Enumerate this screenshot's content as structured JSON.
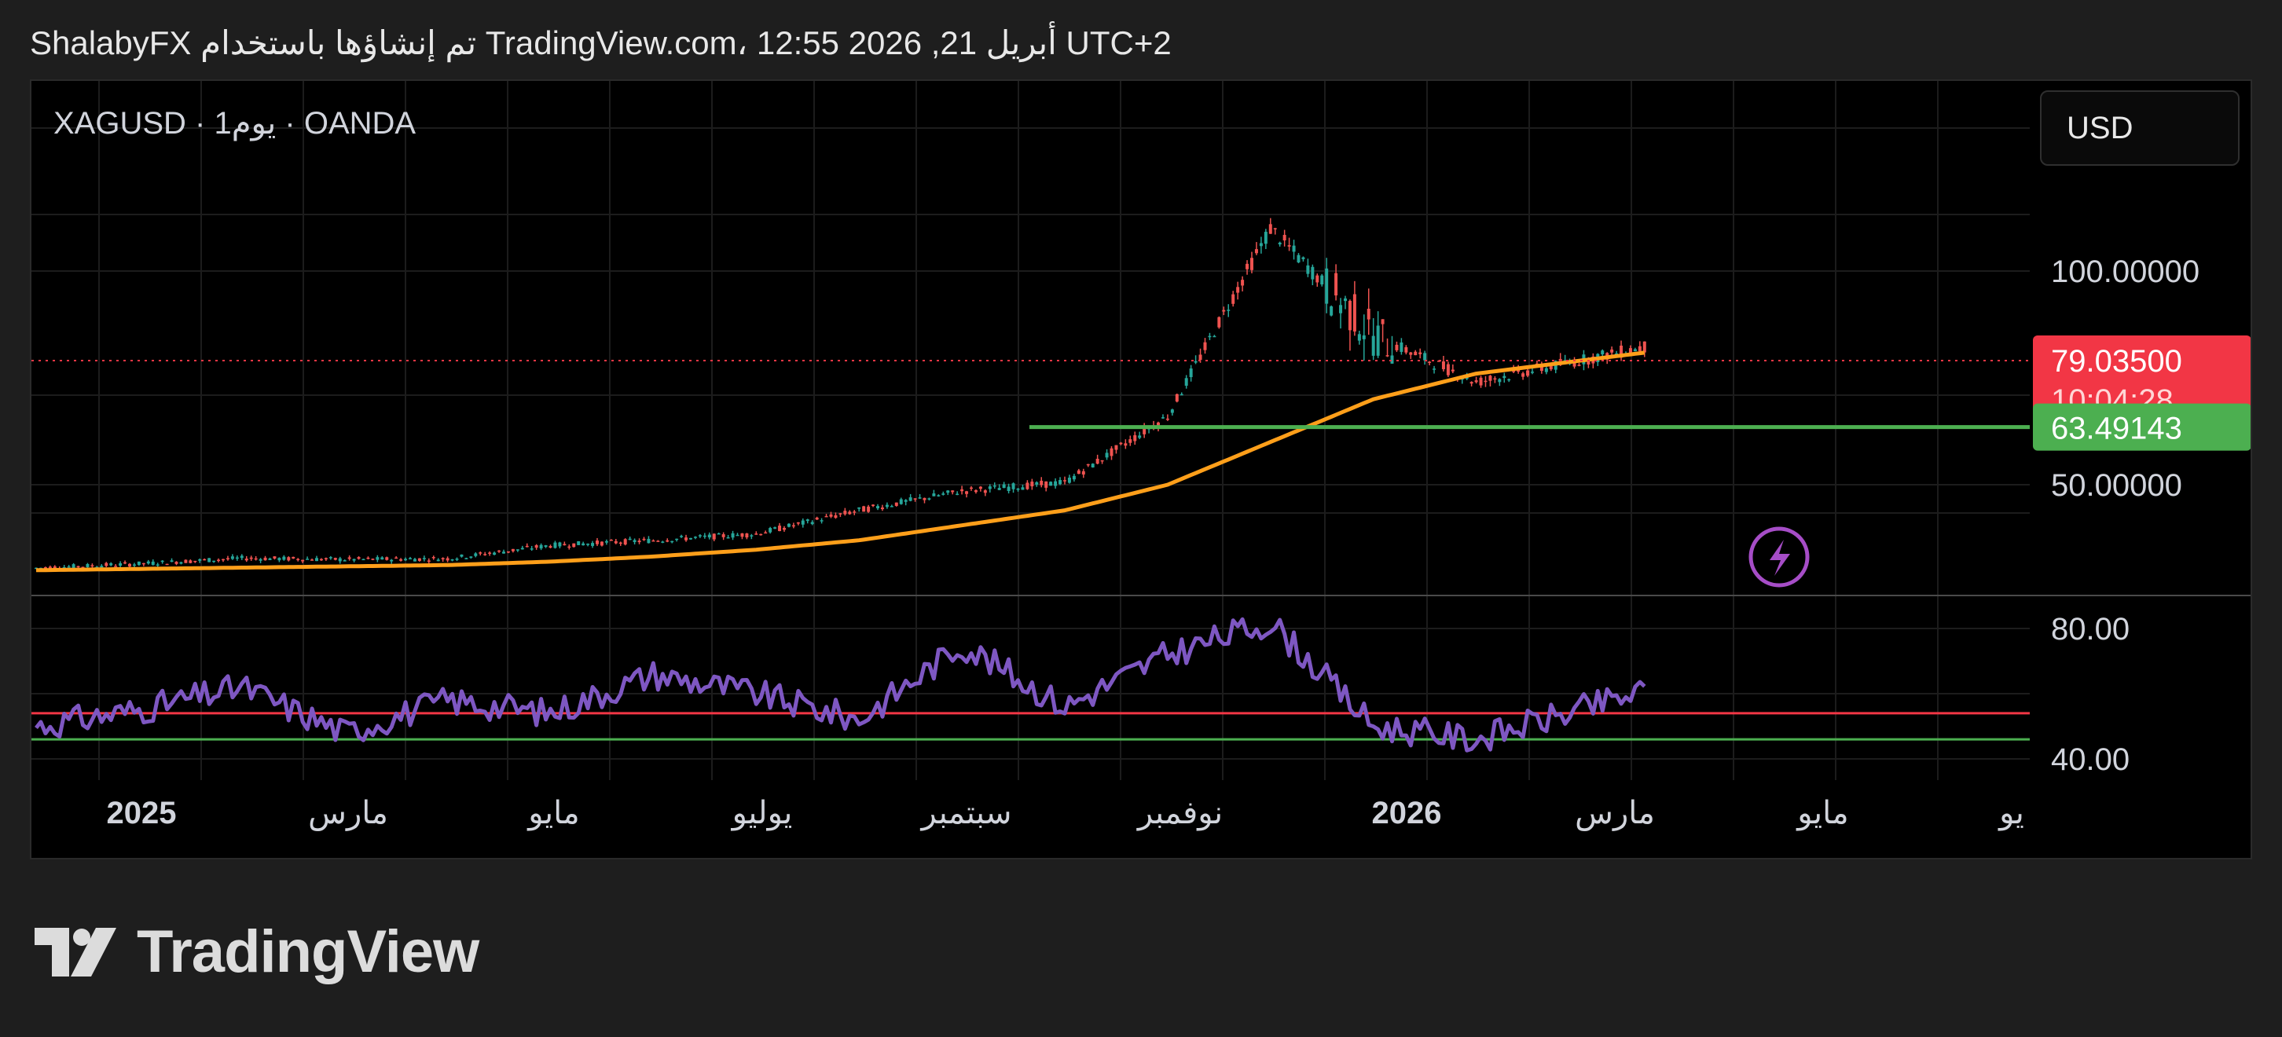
{
  "header": {
    "text": "ShalabyFX تم إنشاؤها باستخدام TradingView.com، 12:55 2026 ,21 أبريل UTC+2"
  },
  "chart_header": {
    "symbol_line": "XAGUSD · 1يوم · OANDA",
    "currency": "USD"
  },
  "brand": {
    "name": "TradingView",
    "logo_icon": "tradingview-logo-icon"
  },
  "colors": {
    "background": "#000000",
    "up_candle": "#26a69a",
    "down_candle": "#ef5350",
    "ma_line": "#ff9f1a",
    "support_line": "#4caf50",
    "rsi_line": "#7e57c2",
    "rsi_upper": "#f23645",
    "rsi_lower": "#4caf50",
    "price_badge": "#f23645",
    "support_badge": "#4caf50"
  },
  "chart_data": [
    {
      "type": "line",
      "subtype": "candlestick",
      "symbol": "XAGUSD",
      "x": [
        "2025-01",
        "2025-02",
        "2025-03",
        "2025-04",
        "2025-05",
        "2025-06",
        "2025-07",
        "2025-08",
        "2025-09",
        "2025-10",
        "2025-11",
        "2025-12",
        "2026-01",
        "2026-02",
        "2026-03",
        "2026-04"
      ],
      "y_axis_labels": [
        "100.00000",
        "50.00000"
      ],
      "x_axis_labels": [
        "2025",
        "مارس",
        "مايو",
        "يوليو",
        "سبتمبر",
        "نوفمبر",
        "2026",
        "مارس",
        "مايو",
        "يو"
      ],
      "series": [
        {
          "values": [
            30.5,
            31.5,
            32.8,
            32.5,
            32.7,
            35.8,
            37.0,
            38.5,
            44.0,
            48.5,
            50.5,
            66.0,
            110.0,
            85.0,
            74.0,
            79.04
          ]
        },
        {
          "values": [
            30.0,
            30.3,
            30.6,
            30.9,
            31.2,
            32.0,
            33.2,
            34.8,
            37.0,
            40.5,
            44.0,
            50.0,
            60.0,
            70.0,
            76.0,
            79.0
          ]
        }
      ],
      "last_price": "79.03500",
      "countdown": "10:04:28",
      "support_level": "63.49143",
      "grid": true
    },
    {
      "type": "line",
      "subtype": "RSI",
      "x": [
        "2025-01",
        "2025-02",
        "2025-03",
        "2025-04",
        "2025-05",
        "2025-06",
        "2025-07",
        "2025-08",
        "2025-09",
        "2025-10",
        "2025-11",
        "2025-12",
        "2026-01",
        "2026-02",
        "2026-03",
        "2026-04"
      ],
      "values": [
        50,
        55,
        62,
        48,
        58,
        54,
        66,
        60,
        52,
        75,
        56,
        72,
        82,
        50,
        46,
        55
      ],
      "y_axis_labels": [
        "80.00",
        "40.00"
      ],
      "upper_level": 54,
      "lower_level": 46,
      "grid": true
    }
  ]
}
